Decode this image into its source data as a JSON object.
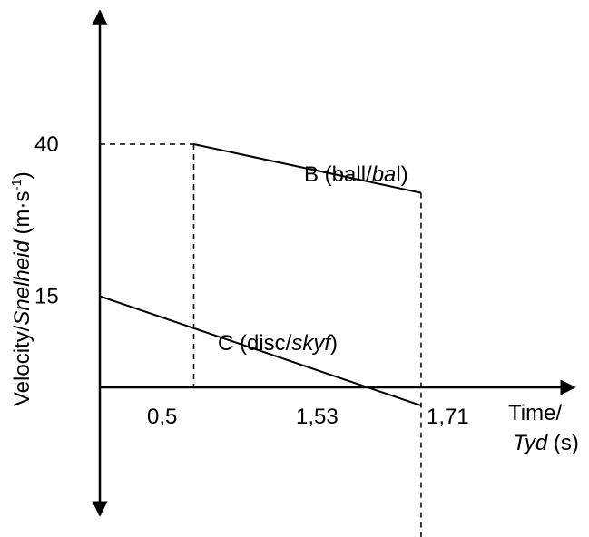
{
  "chart_data": {
    "type": "line",
    "ylabel": {
      "prefix": "Velocity/",
      "italic": "Snelheid",
      "unit": " (m·s",
      "exponent": "-1",
      "close": ")"
    },
    "xlabel": {
      "line1": "Time/",
      "line2_italic": "Tyd",
      "line2_rest": " (s)"
    },
    "x_ticks": [
      {
        "value": 0.5,
        "label": "0,5"
      },
      {
        "value": 1.53,
        "label": "1,53"
      },
      {
        "value": 1.71,
        "label": "1,71"
      }
    ],
    "y_ticks": [
      {
        "value": 40,
        "label": "40"
      },
      {
        "value": 15,
        "label": "15"
      }
    ],
    "series": [
      {
        "id": "B",
        "label_plain": "B (ball/",
        "label_italic": "ba",
        "label_end": "l)",
        "points": [
          [
            0.5,
            40
          ],
          [
            1.71,
            32
          ]
        ]
      },
      {
        "id": "C",
        "label_plain": "C (disc/",
        "label_italic": "skyf",
        "label_end": ")",
        "points": [
          [
            0,
            15
          ],
          [
            1.71,
            -3
          ]
        ]
      }
    ],
    "xlim": [
      0,
      2.33
    ],
    "ylim": [
      -30,
      57
    ]
  }
}
